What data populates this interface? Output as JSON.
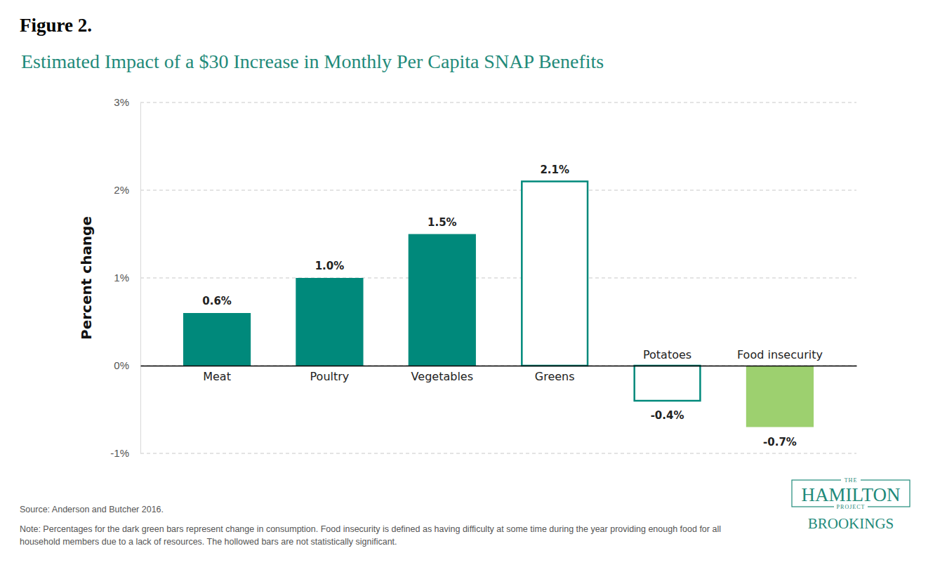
{
  "chart_data": {
    "type": "bar",
    "figure_label": "Figure 2.",
    "title": "Estimated Impact of a $30 Increase in Monthly Per Capita SNAP Benefits",
    "y_label": "Percent change",
    "categories": [
      "Meat",
      "Poultry",
      "Vegetables",
      "Greens",
      "Potatoes",
      "Food insecurity"
    ],
    "values": [
      0.6,
      1.0,
      1.5,
      2.1,
      -0.4,
      -0.7
    ],
    "value_labels": [
      "0.6%",
      "1.0%",
      "1.5%",
      "2.1%",
      "-0.4%",
      "-0.7%"
    ],
    "colors": [
      "#00897b",
      "#00897b",
      "#00897b",
      "#00897b",
      "#00897b",
      "#9dd06f"
    ],
    "significant": [
      true,
      true,
      true,
      false,
      false,
      true
    ],
    "ylim": [
      -1,
      3
    ],
    "yticks": [
      {
        "value": -1,
        "label": "-1%"
      },
      {
        "value": 0,
        "label": "0%"
      },
      {
        "value": 1,
        "label": "1%"
      },
      {
        "value": 2,
        "label": "2%"
      },
      {
        "value": 3,
        "label": "3%"
      }
    ],
    "grid": true,
    "data_labels": true,
    "source": "Source: Anderson and Butcher 2016.",
    "note": "Note: Percentages for the dark green bars represent change in consumption. Food insecurity is defined as having difficulty at some time during the year providing enough food for all household members due to a lack of resources. The hollowed bars are not statistically significant.",
    "logo": [
      "THE",
      "HAMILTON",
      "PROJECT",
      "BROOKINGS"
    ]
  }
}
